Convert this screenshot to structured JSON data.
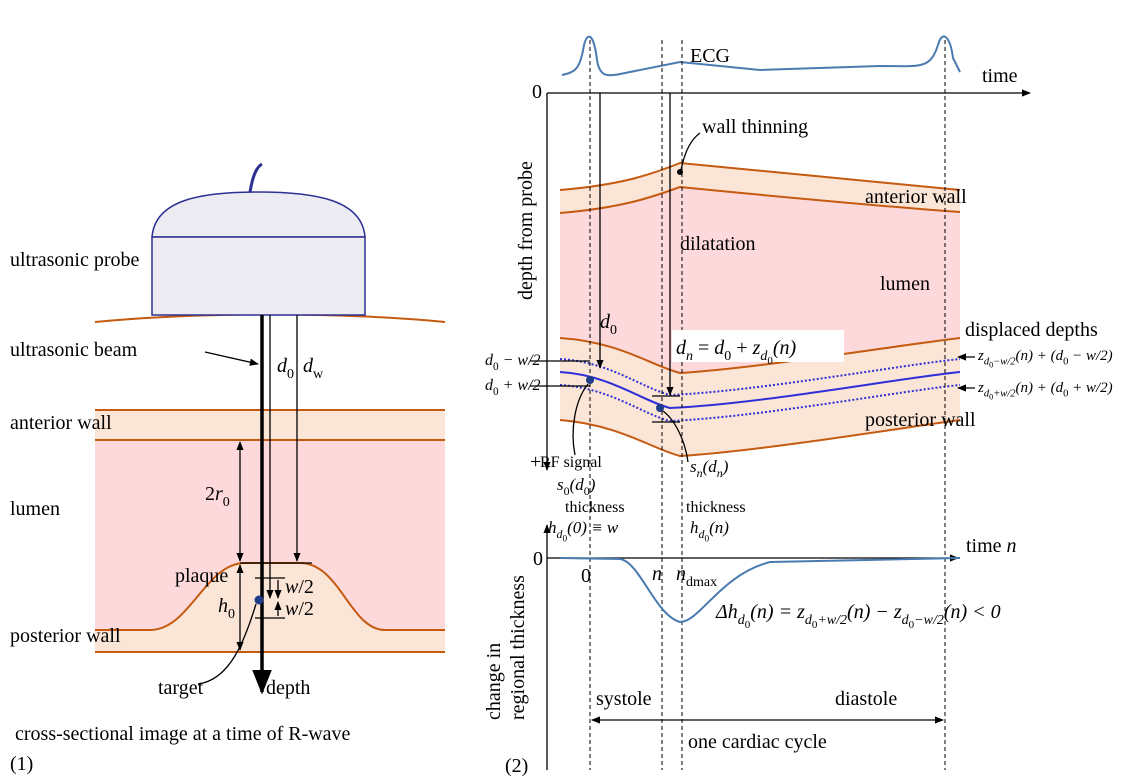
{
  "left": {
    "probe": "ultrasonic probe",
    "beam": "ultrasonic beam",
    "anterior": "anterior wall",
    "lumen": "lumen",
    "plaque": "plaque",
    "posterior": "posterior wall",
    "target": "target",
    "depth": "depth",
    "caption": "cross-sectional image at a time of R-wave",
    "number": "(1)",
    "d0": {
      "parts": [
        {
          "text": "d"
        },
        {
          "text": "0",
          "lvl": 1,
          "roman": true
        }
      ]
    },
    "dw": {
      "parts": [
        {
          "text": "d"
        },
        {
          "text": "w",
          "lvl": 1,
          "roman": true
        }
      ]
    },
    "r0": {
      "parts": [
        {
          "text": "2",
          "roman": true
        },
        {
          "text": "r"
        },
        {
          "text": "0",
          "lvl": 1,
          "roman": true
        }
      ]
    },
    "h0": {
      "parts": [
        {
          "text": "h"
        },
        {
          "text": "0",
          "lvl": 1,
          "roman": true
        }
      ]
    },
    "w2a": {
      "parts": [
        {
          "text": "w"
        },
        {
          "text": "/2",
          "roman": true
        }
      ]
    },
    "w2b": {
      "parts": [
        {
          "text": "w"
        },
        {
          "text": "/2",
          "roman": true
        }
      ]
    }
  },
  "right": {
    "ecg": "ECG",
    "time": "time",
    "zero": "0",
    "depth_axis": "depth from probe",
    "wall_thinning": "wall thinning",
    "anterior": "anterior wall",
    "dilatation": "dilatation",
    "lumen": "lumen",
    "displaced": "displaced depths",
    "posterior": "posterior wall",
    "plus": "+",
    "rf": "RF signal",
    "thickness_a": "thickness",
    "thickness_b": "thickness",
    "zero_b": "0",
    "zero_c": "0",
    "change_1": "change in",
    "change_2": "regional thickness",
    "systole": "systole",
    "diastole": "diastole",
    "cycle": "one cardiac cycle",
    "number": "(2)",
    "d0": {
      "parts": [
        {
          "text": "d"
        },
        {
          "text": "0",
          "lvl": 1,
          "roman": true
        }
      ]
    },
    "dn": {
      "parts": [
        {
          "text": "d"
        },
        {
          "text": "n",
          "lvl": 1
        },
        {
          "text": " = ",
          "roman": true
        },
        {
          "text": "d"
        },
        {
          "text": "0",
          "lvl": 1,
          "roman": true
        },
        {
          "text": " + ",
          "roman": true
        },
        {
          "text": "z"
        },
        {
          "text": "d",
          "lvl": 1
        },
        {
          "text": "0",
          "lvl": 2,
          "roman": true
        },
        {
          "text": "(n)"
        }
      ]
    },
    "left_top": {
      "parts": [
        {
          "text": "d"
        },
        {
          "text": "0",
          "lvl": 1,
          "roman": true
        },
        {
          "text": " − w/2"
        }
      ]
    },
    "left_bot": {
      "parts": [
        {
          "text": "d"
        },
        {
          "text": "0",
          "lvl": 1,
          "roman": true
        },
        {
          "text": " + w/2"
        }
      ]
    },
    "disp_top": {
      "parts": [
        {
          "text": "z"
        },
        {
          "text": "d",
          "lvl": 1
        },
        {
          "text": "0",
          "lvl": 2,
          "roman": true
        },
        {
          "text": "−w/2",
          "lvl": 1
        },
        {
          "text": "(n) + (d"
        },
        {
          "text": "0",
          "lvl": 1,
          "roman": true
        },
        {
          "text": " − w/2)"
        }
      ]
    },
    "disp_bot": {
      "parts": [
        {
          "text": "z"
        },
        {
          "text": "d",
          "lvl": 1
        },
        {
          "text": "0",
          "lvl": 2,
          "roman": true
        },
        {
          "text": "+w/2",
          "lvl": 1
        },
        {
          "text": "(n) + (d"
        },
        {
          "text": "0",
          "lvl": 1,
          "roman": true
        },
        {
          "text": " + w/2)"
        }
      ]
    },
    "s0": {
      "parts": [
        {
          "text": "s"
        },
        {
          "text": "0",
          "lvl": 1,
          "roman": true
        },
        {
          "text": "(d"
        },
        {
          "text": "0",
          "lvl": 1,
          "roman": true
        },
        {
          "text": ")"
        }
      ]
    },
    "h_zero": {
      "parts": [
        {
          "text": "h"
        },
        {
          "text": "d",
          "lvl": 1
        },
        {
          "text": "0",
          "lvl": 2,
          "roman": true
        },
        {
          "text": "(0) ≡ w"
        }
      ]
    },
    "sn": {
      "parts": [
        {
          "text": "s"
        },
        {
          "text": "n",
          "lvl": 1
        },
        {
          "text": "(d"
        },
        {
          "text": "n",
          "lvl": 1
        },
        {
          "text": ")"
        }
      ]
    },
    "h_n": {
      "parts": [
        {
          "text": "h"
        },
        {
          "text": "d",
          "lvl": 1
        },
        {
          "text": "0",
          "lvl": 2,
          "roman": true
        },
        {
          "text": "(n)"
        }
      ]
    },
    "time_n": {
      "parts": [
        {
          "text": "time ",
          "roman": true
        },
        {
          "text": "n"
        }
      ]
    },
    "n": {
      "parts": [
        {
          "text": "n"
        }
      ]
    },
    "ndmax": {
      "parts": [
        {
          "text": "n"
        },
        {
          "text": "dmax",
          "lvl": 1,
          "roman": true
        }
      ]
    },
    "delta": {
      "parts": [
        {
          "text": "Δh",
          "roman": false
        },
        {
          "text": "d",
          "lvl": 1
        },
        {
          "text": "0",
          "lvl": 2,
          "roman": true
        },
        {
          "text": "(n) = z"
        },
        {
          "text": "d",
          "lvl": 1
        },
        {
          "text": "0",
          "lvl": 2,
          "roman": true
        },
        {
          "text": "+w/2",
          "lvl": 1
        },
        {
          "text": "(n) − z"
        },
        {
          "text": "d",
          "lvl": 1
        },
        {
          "text": "0",
          "lvl": 2,
          "roman": true
        },
        {
          "text": "−w/2",
          "lvl": 1
        },
        {
          "text": "(n) < 0"
        }
      ]
    }
  }
}
